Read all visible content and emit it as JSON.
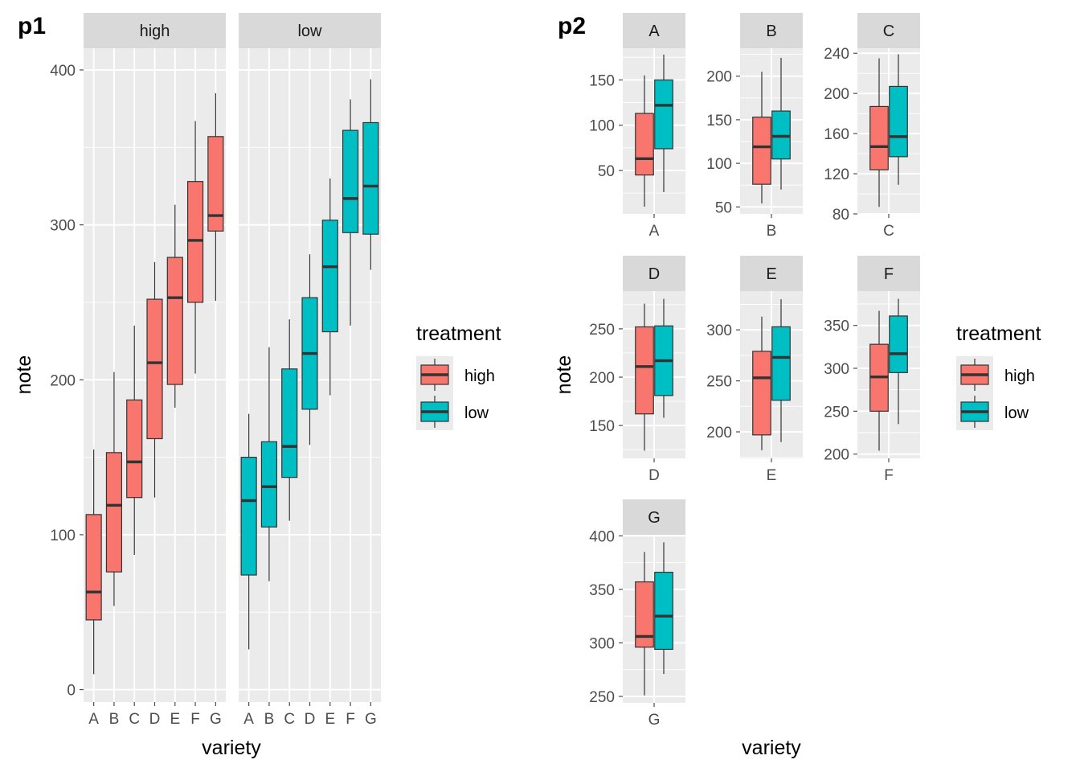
{
  "colors": {
    "high": "#F8766D",
    "low": "#00BFC4",
    "panel": "#EBEBEB",
    "strip": "#D9D9D9",
    "grid": "#FFFFFF",
    "stroke": "#333333",
    "ticks": "#4D4D4D"
  },
  "legend": {
    "title": "treatment",
    "items": [
      {
        "key": "high",
        "label": "high"
      },
      {
        "key": "low",
        "label": "low"
      }
    ]
  },
  "p1": {
    "tag": "p1",
    "xlabel": "variety",
    "ylabel": "note"
  },
  "p2": {
    "tag": "p2",
    "xlabel": "variety",
    "ylabel": "note"
  },
  "chart_data": [
    {
      "id": "p1",
      "type": "boxplot",
      "facet_by": "treatment",
      "facets": [
        "high",
        "low"
      ],
      "categories": [
        "A",
        "B",
        "C",
        "D",
        "E",
        "F",
        "G"
      ],
      "ylim": [
        0,
        400
      ],
      "yticks": [
        0,
        100,
        200,
        300,
        400
      ],
      "grid": true,
      "legend_position": "right",
      "series": [
        {
          "name": "high",
          "boxes": [
            {
              "x": "A",
              "min": 10,
              "q1": 45,
              "median": 63,
              "q3": 113,
              "max": 155
            },
            {
              "x": "B",
              "min": 54,
              "q1": 76,
              "median": 119,
              "q3": 153,
              "max": 205
            },
            {
              "x": "C",
              "min": 87,
              "q1": 124,
              "median": 147,
              "q3": 187,
              "max": 235
            },
            {
              "x": "D",
              "min": 124,
              "q1": 162,
              "median": 211,
              "q3": 252,
              "max": 276
            },
            {
              "x": "E",
              "min": 182,
              "q1": 197,
              "median": 253,
              "q3": 279,
              "max": 313
            },
            {
              "x": "F",
              "min": 204,
              "q1": 250,
              "median": 290,
              "q3": 328,
              "max": 367
            },
            {
              "x": "G",
              "min": 251,
              "q1": 296,
              "median": 306,
              "q3": 357,
              "max": 385
            }
          ]
        },
        {
          "name": "low",
          "boxes": [
            {
              "x": "A",
              "min": 26,
              "q1": 74,
              "median": 122,
              "q3": 150,
              "max": 178
            },
            {
              "x": "B",
              "min": 70,
              "q1": 105,
              "median": 131,
              "q3": 160,
              "max": 221
            },
            {
              "x": "C",
              "min": 109,
              "q1": 137,
              "median": 157,
              "q3": 207,
              "max": 239
            },
            {
              "x": "D",
              "min": 158,
              "q1": 181,
              "median": 217,
              "q3": 253,
              "max": 281
            },
            {
              "x": "E",
              "min": 190,
              "q1": 231,
              "median": 273,
              "q3": 303,
              "max": 330
            },
            {
              "x": "F",
              "min": 235,
              "q1": 295,
              "median": 317,
              "q3": 361,
              "max": 381
            },
            {
              "x": "G",
              "min": 271,
              "q1": 294,
              "median": 325,
              "q3": 366,
              "max": 394
            }
          ]
        }
      ]
    },
    {
      "id": "p2",
      "type": "boxplot",
      "facet_by": "variety",
      "scales": "free_y",
      "grid": true,
      "legend_position": "right",
      "facets": [
        {
          "name": "A",
          "ylim": [
            2,
            185
          ],
          "yticks": [
            50,
            100,
            150
          ],
          "boxes": [
            {
              "treatment": "high",
              "min": 10,
              "q1": 45,
              "median": 63,
              "q3": 113,
              "max": 155
            },
            {
              "treatment": "low",
              "min": 26,
              "q1": 74,
              "median": 122,
              "q3": 150,
              "max": 178
            }
          ]
        },
        {
          "name": "B",
          "ylim": [
            42,
            232
          ],
          "yticks": [
            50,
            100,
            150,
            200
          ],
          "boxes": [
            {
              "treatment": "high",
              "min": 54,
              "q1": 76,
              "median": 119,
              "q3": 153,
              "max": 205
            },
            {
              "treatment": "low",
              "min": 70,
              "q1": 105,
              "median": 131,
              "q3": 160,
              "max": 221
            }
          ]
        },
        {
          "name": "C",
          "ylim": [
            80,
            245
          ],
          "yticks": [
            80,
            120,
            160,
            200,
            240
          ],
          "boxes": [
            {
              "treatment": "high",
              "min": 87,
              "q1": 124,
              "median": 147,
              "q3": 187,
              "max": 235
            },
            {
              "treatment": "low",
              "min": 109,
              "q1": 137,
              "median": 157,
              "q3": 207,
              "max": 239
            }
          ]
        },
        {
          "name": "D",
          "ylim": [
            116,
            289
          ],
          "yticks": [
            150,
            200,
            250
          ],
          "boxes": [
            {
              "treatment": "high",
              "min": 124,
              "q1": 162,
              "median": 211,
              "q3": 252,
              "max": 276
            },
            {
              "treatment": "low",
              "min": 158,
              "q1": 181,
              "median": 217,
              "q3": 253,
              "max": 281
            }
          ]
        },
        {
          "name": "E",
          "ylim": [
            174,
            338
          ],
          "yticks": [
            200,
            250,
            300
          ],
          "boxes": [
            {
              "treatment": "high",
              "min": 182,
              "q1": 197,
              "median": 253,
              "q3": 279,
              "max": 313
            },
            {
              "treatment": "low",
              "min": 190,
              "q1": 231,
              "median": 273,
              "q3": 303,
              "max": 330
            }
          ]
        },
        {
          "name": "F",
          "ylim": [
            195,
            390
          ],
          "yticks": [
            200,
            250,
            300,
            350
          ],
          "boxes": [
            {
              "treatment": "high",
              "min": 204,
              "q1": 250,
              "median": 290,
              "q3": 328,
              "max": 367
            },
            {
              "treatment": "low",
              "min": 235,
              "q1": 295,
              "median": 317,
              "q3": 361,
              "max": 381
            }
          ]
        },
        {
          "name": "G",
          "ylim": [
            244,
            401
          ],
          "yticks": [
            250,
            300,
            350,
            400
          ],
          "boxes": [
            {
              "treatment": "high",
              "min": 251,
              "q1": 296,
              "median": 306,
              "q3": 357,
              "max": 385
            },
            {
              "treatment": "low",
              "min": 271,
              "q1": 294,
              "median": 325,
              "q3": 366,
              "max": 394
            }
          ]
        }
      ]
    }
  ]
}
